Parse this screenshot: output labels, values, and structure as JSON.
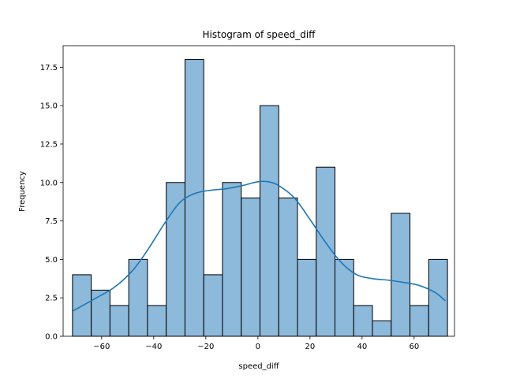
{
  "chart_data": {
    "type": "bar",
    "subtype": "histogram-with-kde",
    "title": "Histogram of speed_diff",
    "xlabel": "speed_diff",
    "ylabel": "Frequency",
    "xlim": [
      -74.8,
      75.5
    ],
    "ylim": [
      0,
      18.9
    ],
    "x_ticks": [
      -60,
      -40,
      -20,
      0,
      20,
      40,
      60
    ],
    "x_tick_labels": [
      "−60",
      "−40",
      "−20",
      "0",
      "20",
      "40",
      "60"
    ],
    "y_ticks": [
      0,
      2.5,
      5,
      7.5,
      10,
      12.5,
      15,
      17.5
    ],
    "y_tick_labels": [
      "0.0",
      "2.5",
      "5.0",
      "7.5",
      "10.0",
      "12.5",
      "15.0",
      "17.5"
    ],
    "bin_edges": [
      -71.2,
      -64.0,
      -56.8,
      -49.6,
      -42.4,
      -35.2,
      -28.0,
      -20.8,
      -13.6,
      -6.4,
      0.8,
      8.0,
      15.2,
      22.4,
      29.6,
      36.8,
      44.0,
      51.2,
      58.4,
      65.6,
      72.8
    ],
    "counts": [
      4,
      3,
      2,
      5,
      2,
      10,
      18,
      4,
      10,
      9,
      15,
      9,
      5,
      11,
      5,
      2,
      1,
      8,
      2,
      5
    ],
    "kde": {
      "x": [
        -71,
        -62,
        -55,
        -48,
        -42,
        -36,
        -30,
        -24,
        -18,
        -12,
        -6,
        0,
        4,
        8,
        14,
        20,
        26,
        32,
        38,
        44,
        50,
        56,
        62,
        68,
        72
      ],
      "y": [
        1.65,
        2.5,
        3.2,
        4.3,
        5.7,
        7.3,
        8.7,
        9.3,
        9.5,
        9.6,
        9.8,
        10.05,
        10.05,
        9.8,
        9.0,
        7.6,
        6.1,
        4.8,
        4.0,
        3.75,
        3.65,
        3.5,
        3.3,
        2.85,
        2.3
      ]
    },
    "grid": false,
    "legend": "none",
    "colors": {
      "bar_fill": "#8db9db",
      "bar_edge": "#000000",
      "kde_line": "#1f77b4",
      "axis": "#000000",
      "background": "#ffffff"
    }
  }
}
